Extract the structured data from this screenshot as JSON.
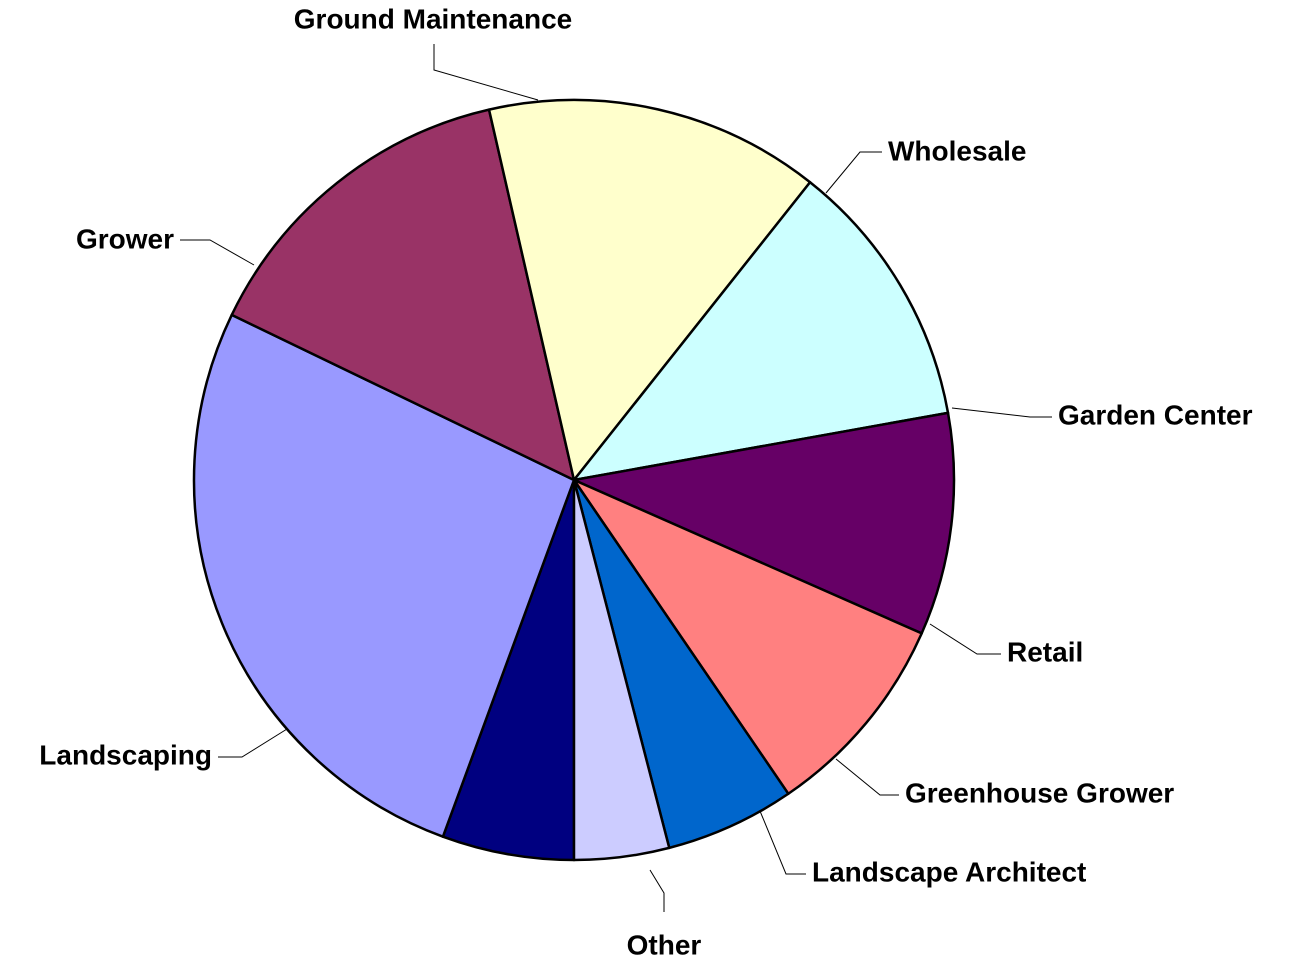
{
  "chart_data": {
    "type": "pie",
    "title": "",
    "unit": "percent",
    "start_angle_deg": 90,
    "direction": "clockwise",
    "legend": "none",
    "slices": [
      {
        "label": "Other",
        "value": 5.7,
        "color": "#000080"
      },
      {
        "label": "Landscaping",
        "value": 27.0,
        "color": "#9999FF"
      },
      {
        "label": "Grower",
        "value": 14.5,
        "color": "#993366"
      },
      {
        "label": "Ground Maintenance",
        "value": 14.5,
        "color": "#FFFFCC"
      },
      {
        "label": "Wholesale",
        "value": 11.7,
        "color": "#CCFFFF"
      },
      {
        "label": "Garden Center",
        "value": 9.6,
        "color": "#660066"
      },
      {
        "label": "Retail",
        "value": 9.0,
        "color": "#FF8080"
      },
      {
        "label": "Greenhouse Grower",
        "value": 5.6,
        "color": "#0066CC"
      },
      {
        "label": "Landscape Architect",
        "value": 4.1,
        "color": "#CCCCFF"
      }
    ]
  }
}
